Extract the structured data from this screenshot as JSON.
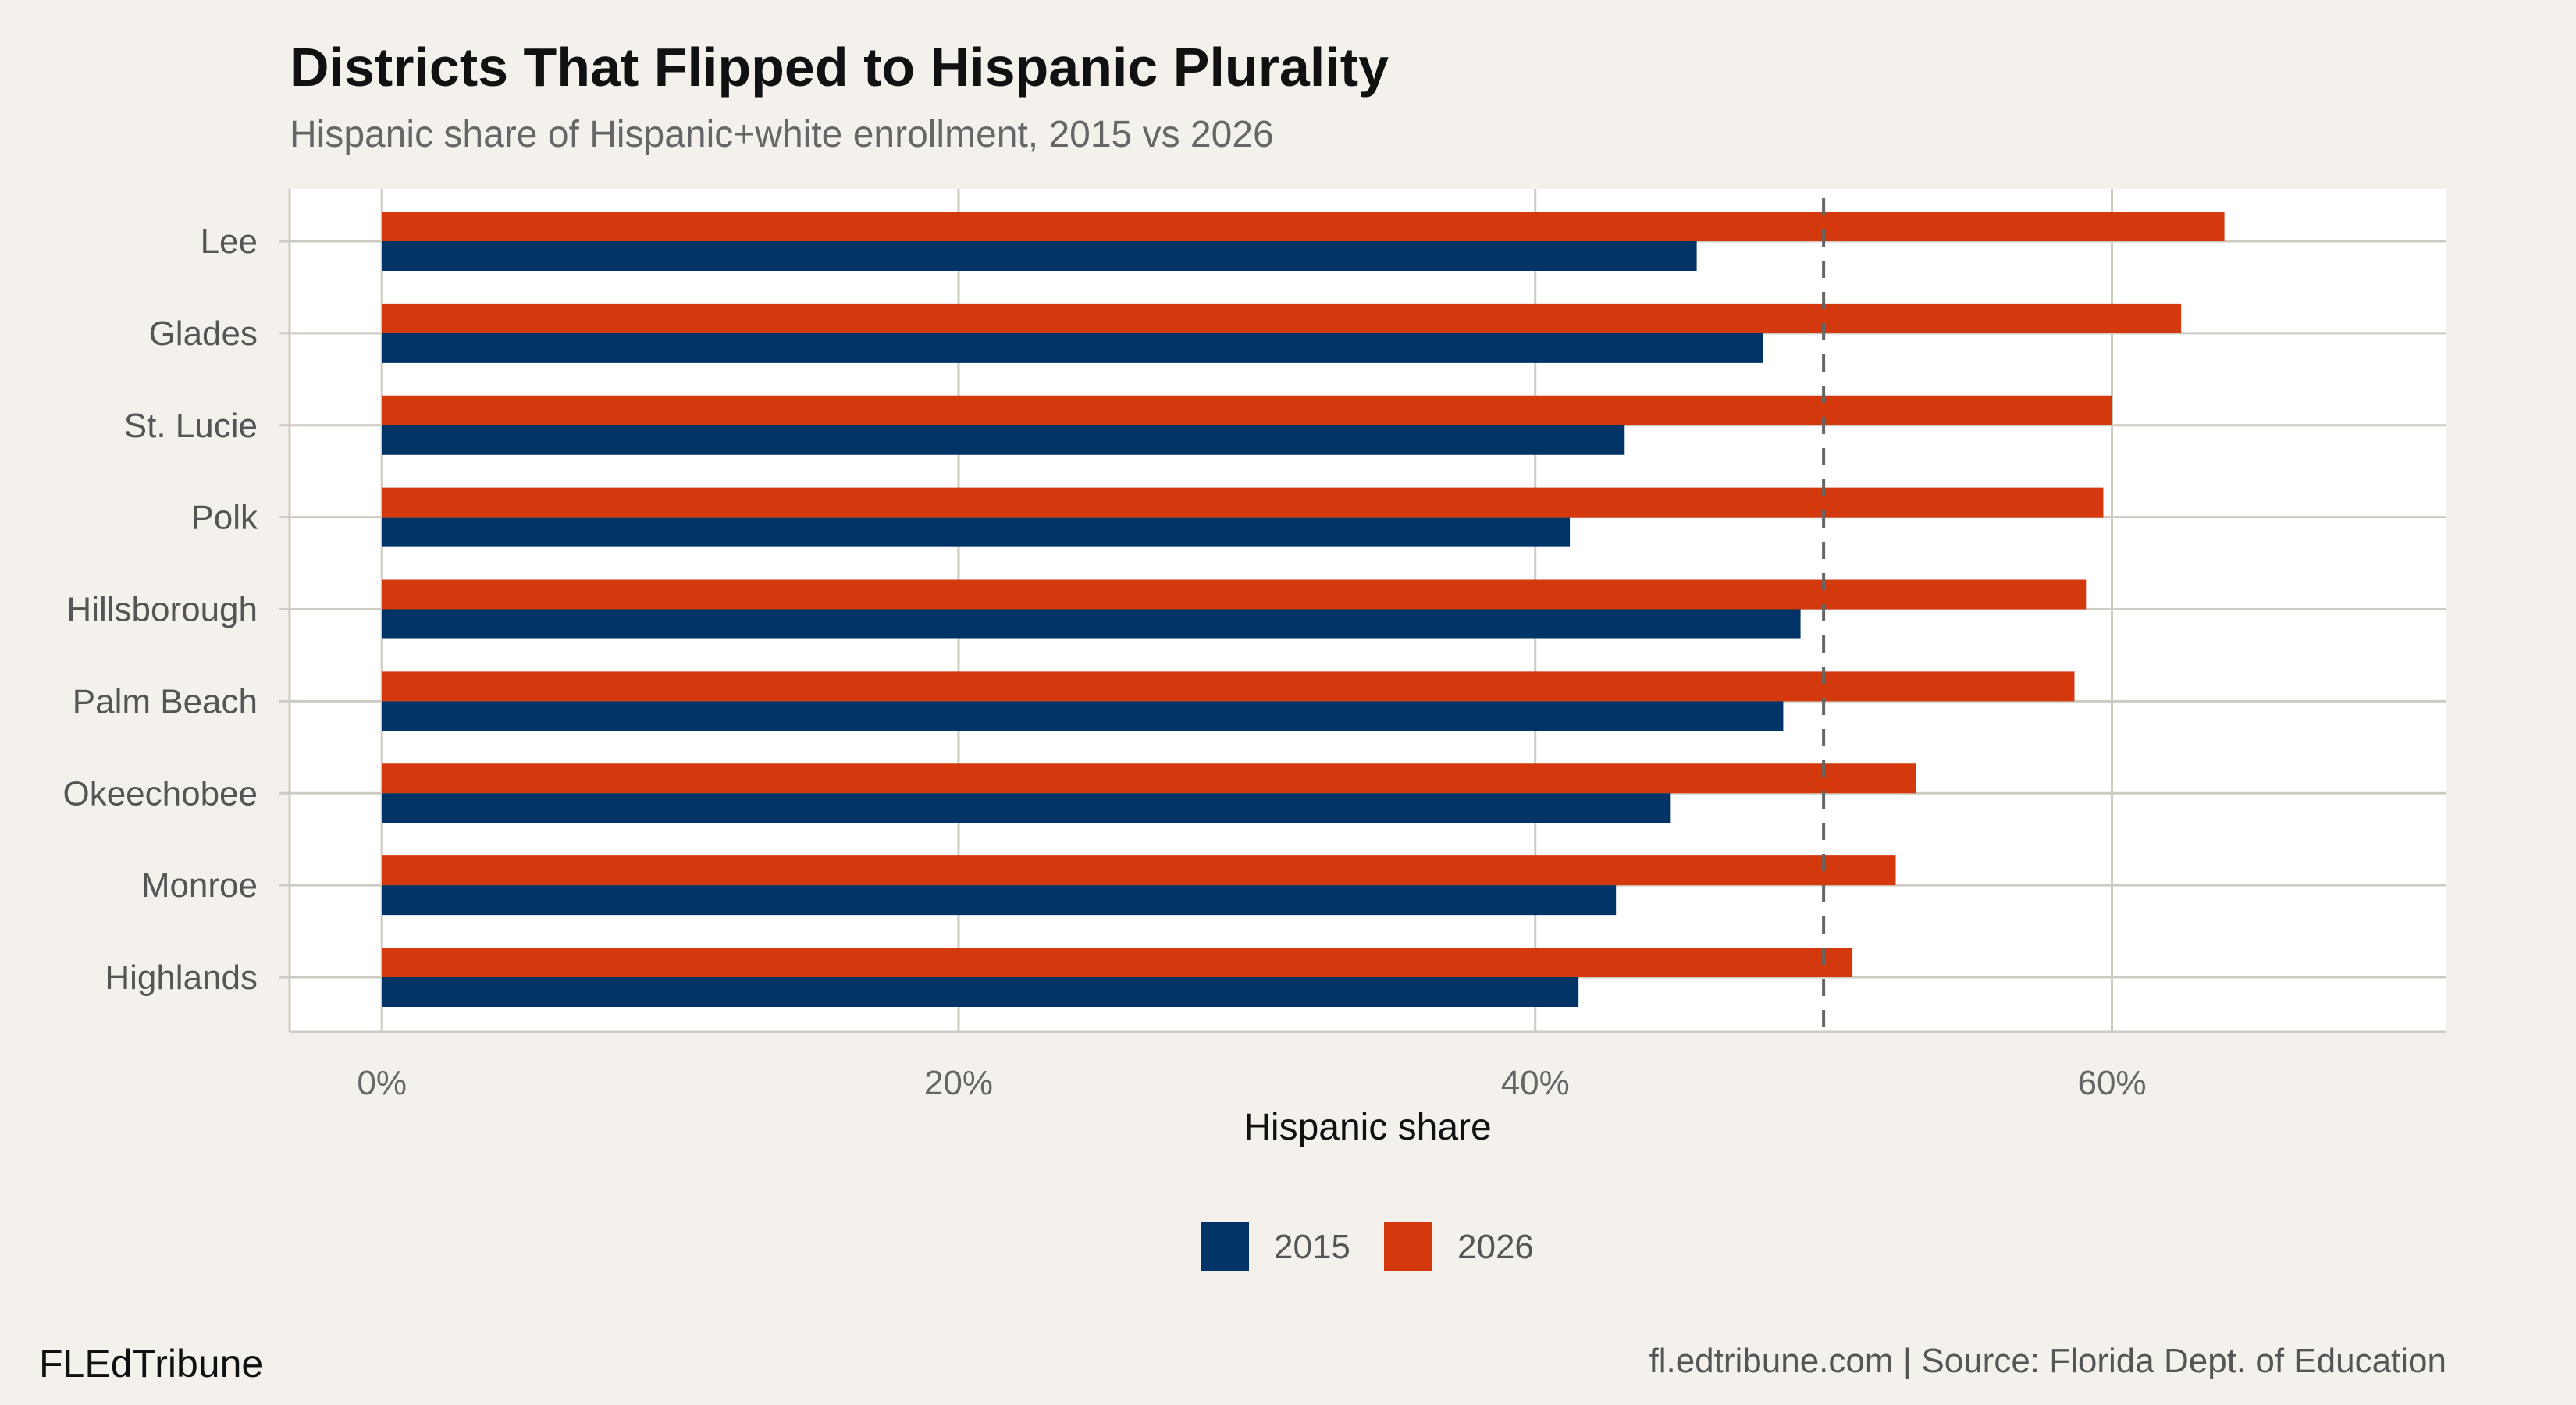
{
  "chart_data": {
    "type": "bar",
    "orientation": "horizontal",
    "title": "Districts That Flipped to Hispanic Plurality",
    "subtitle": "Hispanic share of Hispanic+white enrollment, 2015 vs 2026",
    "xlabel": "Hispanic share",
    "ylabel": "",
    "categories": [
      "Lee",
      "Glades",
      "St. Lucie",
      "Polk",
      "Hillsborough",
      "Palm Beach",
      "Okeechobee",
      "Monroe",
      "Highlands"
    ],
    "series": [
      {
        "name": "2015",
        "color": "#003366",
        "values": [
          45.6,
          47.9,
          43.1,
          41.2,
          49.2,
          48.6,
          44.7,
          42.8,
          41.5
        ]
      },
      {
        "name": "2026",
        "color": "#d4380d",
        "values": [
          63.9,
          62.4,
          60.0,
          59.7,
          59.1,
          58.7,
          53.2,
          52.5,
          51.0
        ]
      }
    ],
    "xlim": [
      -3.2,
      71.6
    ],
    "xticks": [
      0,
      20,
      40,
      60
    ],
    "xtick_labels": [
      "0%",
      "20%",
      "40%",
      "60%"
    ],
    "reference_line": {
      "value": 50,
      "style": "dashed",
      "color": "#666666"
    },
    "grid": true,
    "legend_position": "bottom"
  },
  "footer": {
    "brand": "FLEdTribune",
    "source": "fl.edtribune.com | Source: Florida Dept. of Education"
  }
}
